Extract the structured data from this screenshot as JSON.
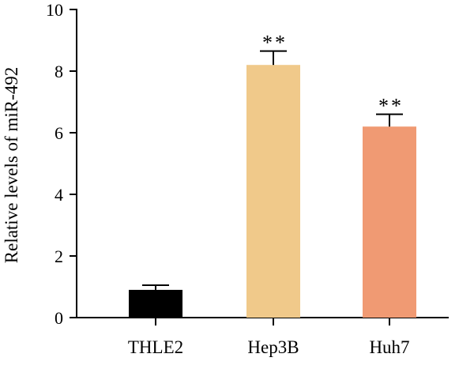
{
  "chart_data": {
    "type": "bar",
    "categories": [
      "THLE2",
      "Hep3B",
      "Huh7"
    ],
    "values": [
      0.9,
      8.2,
      6.2
    ],
    "errors": [
      0.15,
      0.45,
      0.4
    ],
    "annotations": [
      "",
      "**",
      "**"
    ],
    "colors": [
      "#000000",
      "#F0C98A",
      "#F09A73"
    ],
    "ylabel": "Relative levels of miR-492",
    "xlabel": "",
    "ylim": [
      0,
      10
    ],
    "yticks": [
      0,
      2,
      4,
      6,
      8,
      10
    ],
    "grid": false
  }
}
